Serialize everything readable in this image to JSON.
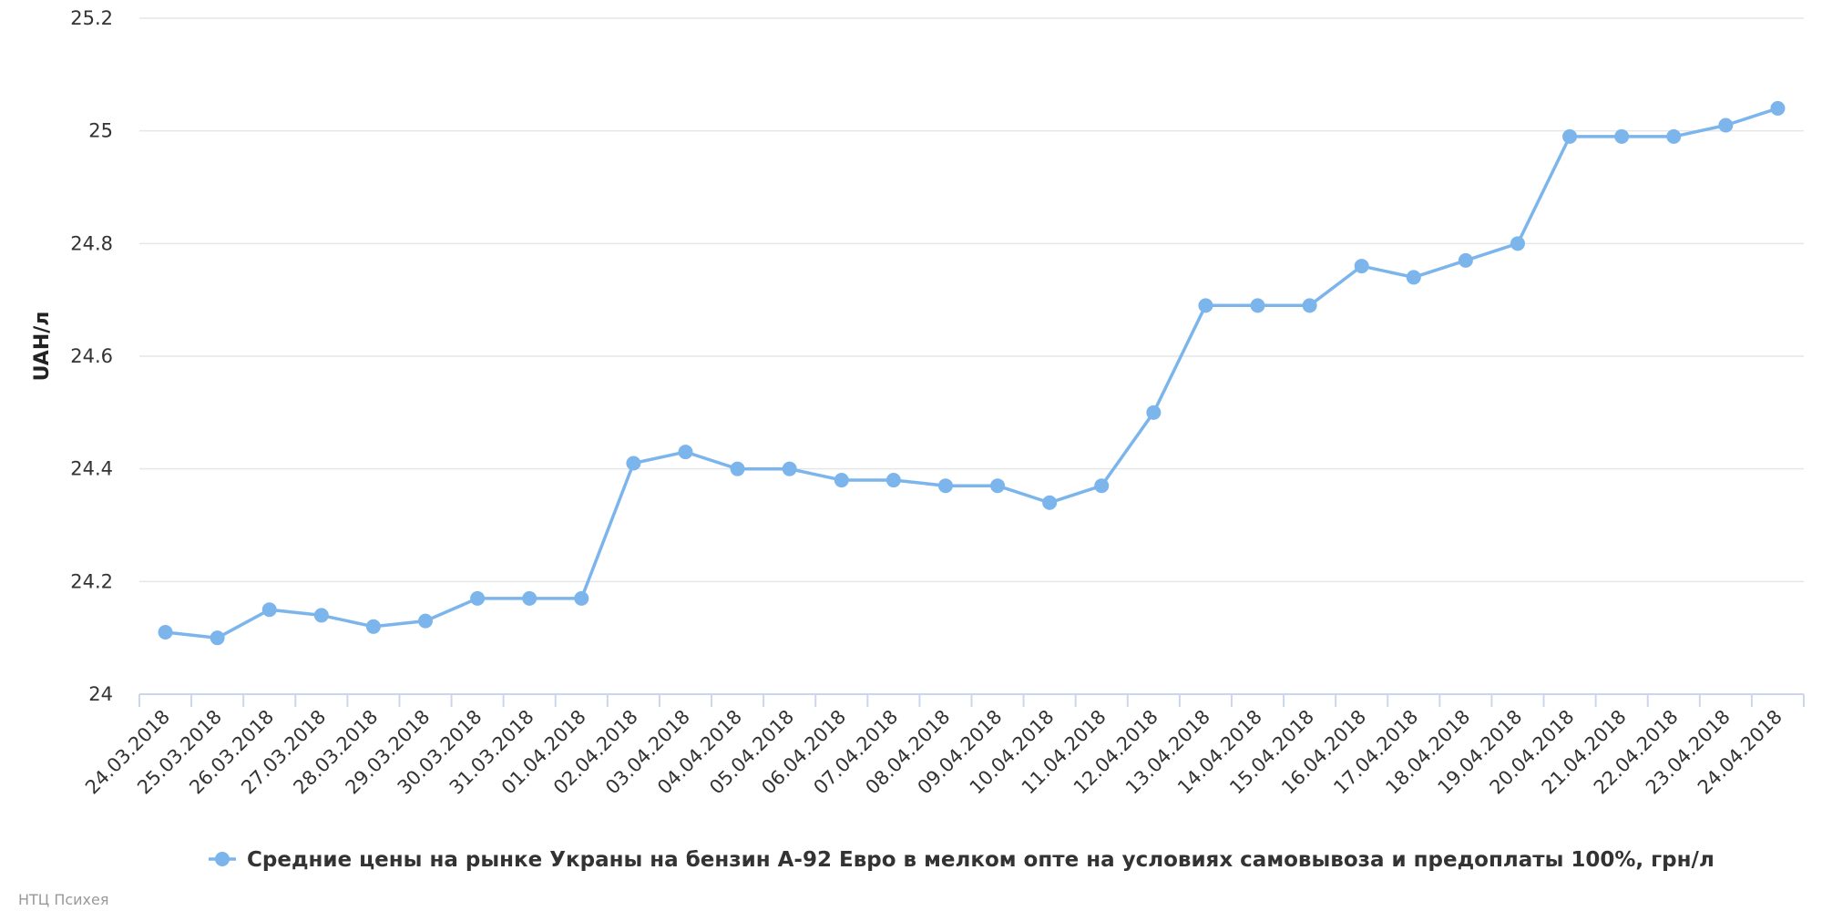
{
  "colors": {
    "series": "#7cb5ec",
    "grid": "#e6e6e6",
    "axis": "#ccd6eb"
  },
  "credit": "НТЦ Психея",
  "chart_data": {
    "type": "line",
    "ylabel": "UAH/л",
    "ylim": [
      24,
      25.2
    ],
    "yticks": [
      "24",
      "24.2",
      "24.4",
      "24.6",
      "24.8",
      "25",
      "25.2"
    ],
    "grid": true,
    "legend_position": "bottom-center",
    "categories": [
      "24.03.2018",
      "25.03.2018",
      "26.03.2018",
      "27.03.2018",
      "28.03.2018",
      "29.03.2018",
      "30.03.2018",
      "31.03.2018",
      "01.04.2018",
      "02.04.2018",
      "03.04.2018",
      "04.04.2018",
      "05.04.2018",
      "06.04.2018",
      "07.04.2018",
      "08.04.2018",
      "09.04.2018",
      "10.04.2018",
      "11.04.2018",
      "12.04.2018",
      "13.04.2018",
      "14.04.2018",
      "15.04.2018",
      "16.04.2018",
      "17.04.2018",
      "18.04.2018",
      "19.04.2018",
      "20.04.2018",
      "21.04.2018",
      "22.04.2018",
      "23.04.2018",
      "24.04.2018"
    ],
    "series": [
      {
        "name": "Средние цены на рынке Украны на бензин А-92 Евро в мелком опте на условиях самовывоза и предоплаты 100%, грн/л",
        "values": [
          24.11,
          24.1,
          24.15,
          24.14,
          24.12,
          24.13,
          24.17,
          24.17,
          24.17,
          24.41,
          24.43,
          24.4,
          24.4,
          24.38,
          24.38,
          24.37,
          24.37,
          24.34,
          24.37,
          24.5,
          24.69,
          24.69,
          24.69,
          24.76,
          24.74,
          24.77,
          24.8,
          24.99,
          24.99,
          24.99,
          25.01,
          25.04
        ]
      }
    ]
  }
}
